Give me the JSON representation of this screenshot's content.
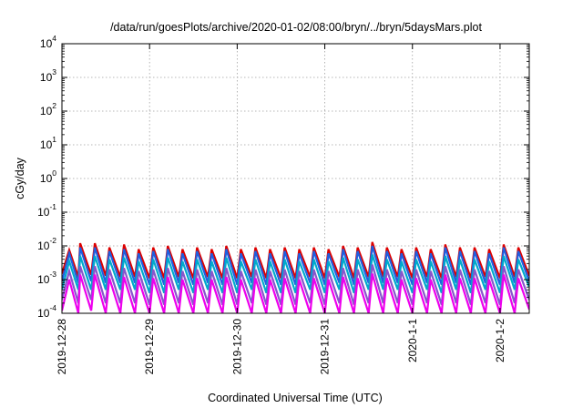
{
  "chart_data": {
    "type": "line",
    "title": "/data/run/goesPlots/archive/2020-01-02/08:00/bryn/../bryn/5daysMars.plot",
    "xlabel": "Coordinated Universal Time (UTC)",
    "ylabel": "cGy/day",
    "yscale": "log",
    "ylim": [
      0.0001,
      10000
    ],
    "xlim": [
      "2019-12-28T00:00",
      "2020-01-02T08:00"
    ],
    "grid": true,
    "legend": "none",
    "y_ticks": [
      {
        "base": "10",
        "exp": "-4",
        "value": 0.0001
      },
      {
        "base": "10",
        "exp": "-3",
        "value": 0.001
      },
      {
        "base": "10",
        "exp": "-2",
        "value": 0.01
      },
      {
        "base": "10",
        "exp": "-1",
        "value": 0.1
      },
      {
        "base": "10",
        "exp": "0",
        "value": 1
      },
      {
        "base": "10",
        "exp": "1",
        "value": 10
      },
      {
        "base": "10",
        "exp": "2",
        "value": 100
      },
      {
        "base": "10",
        "exp": "3",
        "value": 1000
      },
      {
        "base": "10",
        "exp": "4",
        "value": 10000
      }
    ],
    "x_ticks": [
      {
        "label": "2019-12-28",
        "value": "2019-12-28T00:00"
      },
      {
        "label": "2019-12-29",
        "value": "2019-12-29T00:00"
      },
      {
        "label": "2019-12-30",
        "value": "2019-12-30T00:00"
      },
      {
        "label": "2019-12-31",
        "value": "2019-12-31T00:00"
      },
      {
        "label": "2020-1-1",
        "value": "2020-01-01T00:00"
      },
      {
        "label": "2020-1-2",
        "value": "2020-01-02T00:00"
      }
    ],
    "series": [
      {
        "color": "#dd0000",
        "x": [
          "2019-12-28T00:00",
          "2019-12-28T02:00",
          "2019-12-28T04:30",
          "2019-12-28T05:00",
          "2019-12-28T08:00",
          "2019-12-28T09:00",
          "2019-12-28T12:00",
          "2019-12-28T13:00",
          "2019-12-28T16:00",
          "2019-12-28T17:00",
          "2019-12-28T20:00",
          "2019-12-28T21:00",
          "2019-12-29T00:00",
          "2019-12-29T01:00",
          "2019-12-29T04:00",
          "2019-12-29T05:00",
          "2019-12-29T08:00",
          "2019-12-29T09:00",
          "2019-12-29T12:00",
          "2019-12-29T13:00",
          "2019-12-29T16:00",
          "2019-12-29T17:00",
          "2019-12-29T20:00",
          "2019-12-29T21:00",
          "2019-12-30T00:00",
          "2019-12-30T01:00",
          "2019-12-30T04:00",
          "2019-12-30T05:00",
          "2019-12-30T08:00",
          "2019-12-30T09:00",
          "2019-12-30T12:00",
          "2019-12-30T13:00",
          "2019-12-30T16:00",
          "2019-12-30T17:00",
          "2019-12-30T20:00",
          "2019-12-30T21:00",
          "2019-12-31T00:00",
          "2019-12-31T01:00",
          "2019-12-31T04:00",
          "2019-12-31T05:00",
          "2019-12-31T08:00",
          "2019-12-31T09:00",
          "2019-12-31T12:00",
          "2019-12-31T13:00",
          "2019-12-31T16:00",
          "2019-12-31T17:00",
          "2019-12-31T20:00",
          "2019-12-31T21:00",
          "2020-01-01T00:00",
          "2020-01-01T01:00",
          "2020-01-01T04:00",
          "2020-01-01T05:00",
          "2020-01-01T08:00",
          "2020-01-01T09:00",
          "2020-01-01T12:00",
          "2020-01-01T13:00",
          "2020-01-01T16:00",
          "2020-01-01T17:00",
          "2020-01-01T20:00",
          "2020-01-01T21:00",
          "2020-01-02T00:00",
          "2020-01-02T01:00",
          "2020-01-02T04:00",
          "2020-01-02T05:00",
          "2020-01-02T08:00"
        ],
        "y": [
          0.0015,
          0.0075,
          0.0012,
          0.012,
          0.0014,
          0.012,
          0.0013,
          0.009,
          0.0012,
          0.011,
          0.0012,
          0.008,
          0.0011,
          0.009,
          0.0011,
          0.01,
          0.0012,
          0.008,
          0.0011,
          0.009,
          0.0012,
          0.008,
          0.0011,
          0.01,
          0.0011,
          0.008,
          0.0012,
          0.009,
          0.0011,
          0.008,
          0.0011,
          0.009,
          0.0011,
          0.008,
          0.0012,
          0.009,
          0.0011,
          0.008,
          0.0012,
          0.01,
          0.0011,
          0.009,
          0.0012,
          0.013,
          0.0012,
          0.009,
          0.0012,
          0.008,
          0.0011,
          0.009,
          0.0012,
          0.008,
          0.0011,
          0.011,
          0.0012,
          0.009,
          0.0011,
          0.009,
          0.0012,
          0.008,
          0.0011,
          0.011,
          0.0012,
          0.009,
          0.0013
        ]
      },
      {
        "color": "#1f5fe0",
        "x": [
          "2019-12-28T00:00",
          "2019-12-28T02:00",
          "2019-12-28T04:30",
          "2019-12-28T05:00",
          "2019-12-28T08:00",
          "2019-12-28T09:00",
          "2019-12-28T12:00",
          "2019-12-28T13:00",
          "2019-12-28T16:00",
          "2019-12-28T17:00",
          "2019-12-28T20:00",
          "2019-12-28T21:00",
          "2019-12-29T00:00",
          "2019-12-29T01:00",
          "2019-12-29T04:00",
          "2019-12-29T05:00",
          "2019-12-29T08:00",
          "2019-12-29T09:00",
          "2019-12-29T12:00",
          "2019-12-29T13:00",
          "2019-12-29T16:00",
          "2019-12-29T17:00",
          "2019-12-29T20:00",
          "2019-12-29T21:00",
          "2019-12-30T00:00",
          "2019-12-30T01:00",
          "2019-12-30T04:00",
          "2019-12-30T05:00",
          "2019-12-30T08:00",
          "2019-12-30T09:00",
          "2019-12-30T12:00",
          "2019-12-30T13:00",
          "2019-12-30T16:00",
          "2019-12-30T17:00",
          "2019-12-30T20:00",
          "2019-12-30T21:00",
          "2019-12-31T00:00",
          "2019-12-31T01:00",
          "2019-12-31T04:00",
          "2019-12-31T05:00",
          "2019-12-31T08:00",
          "2019-12-31T09:00",
          "2019-12-31T12:00",
          "2019-12-31T13:00",
          "2019-12-31T16:00",
          "2019-12-31T17:00",
          "2019-12-31T20:00",
          "2019-12-31T21:00",
          "2020-01-01T00:00",
          "2020-01-01T01:00",
          "2020-01-01T04:00",
          "2020-01-01T05:00",
          "2020-01-01T08:00",
          "2020-01-01T09:00",
          "2020-01-01T12:00",
          "2020-01-01T13:00",
          "2020-01-01T16:00",
          "2020-01-01T17:00",
          "2020-01-01T20:00",
          "2020-01-01T21:00",
          "2020-01-02T00:00",
          "2020-01-02T01:00",
          "2020-01-02T04:00",
          "2020-01-02T05:00",
          "2020-01-02T08:00"
        ],
        "y": [
          0.0009,
          0.006,
          0.0008,
          0.009,
          0.0009,
          0.009,
          0.0008,
          0.007,
          0.0008,
          0.008,
          0.0008,
          0.006,
          0.0007,
          0.007,
          0.0007,
          0.008,
          0.0008,
          0.006,
          0.0007,
          0.007,
          0.0008,
          0.006,
          0.0007,
          0.008,
          0.0007,
          0.006,
          0.0008,
          0.007,
          0.0007,
          0.006,
          0.0007,
          0.007,
          0.0007,
          0.006,
          0.0008,
          0.007,
          0.0007,
          0.006,
          0.0008,
          0.008,
          0.0007,
          0.007,
          0.0008,
          0.01,
          0.0008,
          0.007,
          0.0008,
          0.006,
          0.0007,
          0.007,
          0.0008,
          0.006,
          0.0007,
          0.009,
          0.0008,
          0.007,
          0.0007,
          0.007,
          0.0008,
          0.006,
          0.0007,
          0.009,
          0.0008,
          0.007,
          0.0009
        ]
      },
      {
        "color": "#00aacc",
        "x": [
          "2019-12-28T00:00",
          "2019-12-28T02:00",
          "2019-12-28T04:30",
          "2019-12-28T05:00",
          "2019-12-28T08:00",
          "2019-12-28T09:00",
          "2019-12-28T12:00",
          "2019-12-28T13:00",
          "2019-12-28T16:00",
          "2019-12-28T17:00",
          "2019-12-28T20:00",
          "2019-12-28T21:00",
          "2019-12-29T00:00",
          "2019-12-29T01:00",
          "2019-12-29T04:00",
          "2019-12-29T05:00",
          "2019-12-29T08:00",
          "2019-12-29T09:00",
          "2019-12-29T12:00",
          "2019-12-29T13:00",
          "2019-12-29T16:00",
          "2019-12-29T17:00",
          "2019-12-29T20:00",
          "2019-12-29T21:00",
          "2019-12-30T00:00",
          "2019-12-30T01:00",
          "2019-12-30T04:00",
          "2019-12-30T05:00",
          "2019-12-30T08:00",
          "2019-12-30T09:00",
          "2019-12-30T12:00",
          "2019-12-30T13:00",
          "2019-12-30T16:00",
          "2019-12-30T17:00",
          "2019-12-30T20:00",
          "2019-12-30T21:00",
          "2019-12-31T00:00",
          "2019-12-31T01:00",
          "2019-12-31T04:00",
          "2019-12-31T05:00",
          "2019-12-31T08:00",
          "2019-12-31T09:00",
          "2019-12-31T12:00",
          "2019-12-31T13:00",
          "2019-12-31T16:00",
          "2019-12-31T17:00",
          "2019-12-31T20:00",
          "2019-12-31T21:00",
          "2020-01-01T00:00",
          "2020-01-01T01:00",
          "2020-01-01T04:00",
          "2020-01-01T05:00",
          "2020-01-01T08:00",
          "2020-01-01T09:00",
          "2020-01-01T12:00",
          "2020-01-01T13:00",
          "2020-01-01T16:00",
          "2020-01-01T17:00",
          "2020-01-01T20:00",
          "2020-01-01T21:00",
          "2020-01-02T00:00",
          "2020-01-02T01:00",
          "2020-01-02T04:00",
          "2020-01-02T05:00",
          "2020-01-02T08:00"
        ],
        "y": [
          0.0005,
          0.0035,
          0.0005,
          0.005,
          0.0005,
          0.005,
          0.0005,
          0.004,
          0.0005,
          0.0045,
          0.0005,
          0.0035,
          0.0004,
          0.004,
          0.0004,
          0.0045,
          0.0005,
          0.0035,
          0.0004,
          0.004,
          0.0005,
          0.0035,
          0.0004,
          0.0045,
          0.0004,
          0.0035,
          0.0005,
          0.004,
          0.0004,
          0.0035,
          0.0004,
          0.004,
          0.0004,
          0.0035,
          0.0005,
          0.004,
          0.0004,
          0.0035,
          0.0005,
          0.0045,
          0.0004,
          0.004,
          0.0005,
          0.0055,
          0.0005,
          0.004,
          0.0005,
          0.0035,
          0.0004,
          0.004,
          0.0005,
          0.0035,
          0.0004,
          0.005,
          0.0005,
          0.004,
          0.0004,
          0.004,
          0.0005,
          0.0035,
          0.0004,
          0.005,
          0.0005,
          0.004,
          0.0006
        ]
      },
      {
        "color": "#8855cc",
        "x": [
          "2019-12-28T00:00",
          "2019-12-28T02:00",
          "2019-12-28T04:30",
          "2019-12-28T05:00",
          "2019-12-28T08:00",
          "2019-12-28T09:00",
          "2019-12-28T12:00",
          "2019-12-28T13:00",
          "2019-12-28T16:00",
          "2019-12-28T17:00",
          "2019-12-28T20:00",
          "2019-12-28T21:00",
          "2019-12-29T00:00",
          "2019-12-29T01:00",
          "2019-12-29T04:00",
          "2019-12-29T05:00",
          "2019-12-29T08:00",
          "2019-12-29T09:00",
          "2019-12-29T12:00",
          "2019-12-29T13:00",
          "2019-12-29T16:00",
          "2019-12-29T17:00",
          "2019-12-29T20:00",
          "2019-12-29T21:00",
          "2019-12-30T00:00",
          "2019-12-30T01:00",
          "2019-12-30T04:00",
          "2019-12-30T05:00",
          "2019-12-30T08:00",
          "2019-12-30T09:00",
          "2019-12-30T12:00",
          "2019-12-30T13:00",
          "2019-12-30T16:00",
          "2019-12-30T17:00",
          "2019-12-30T20:00",
          "2019-12-30T21:00",
          "2019-12-31T00:00",
          "2019-12-31T01:00",
          "2019-12-31T04:00",
          "2019-12-31T05:00",
          "2019-12-31T08:00",
          "2019-12-31T09:00",
          "2019-12-31T12:00",
          "2019-12-31T13:00",
          "2019-12-31T16:00",
          "2019-12-31T17:00",
          "2019-12-31T20:00",
          "2019-12-31T21:00",
          "2020-01-01T00:00",
          "2020-01-01T01:00",
          "2020-01-01T04:00",
          "2020-01-01T05:00",
          "2020-01-01T08:00",
          "2020-01-01T09:00",
          "2020-01-01T12:00",
          "2020-01-01T13:00",
          "2020-01-01T16:00",
          "2020-01-01T17:00",
          "2020-01-01T20:00",
          "2020-01-01T21:00",
          "2020-01-02T00:00",
          "2020-01-02T01:00",
          "2020-01-02T04:00",
          "2020-01-02T05:00",
          "2020-01-02T08:00"
        ],
        "y": [
          0.00025,
          0.0018,
          0.0002,
          0.0025,
          0.00025,
          0.0025,
          0.0002,
          0.002,
          0.0002,
          0.0022,
          0.0002,
          0.0018,
          0.00018,
          0.002,
          0.00018,
          0.0022,
          0.0002,
          0.0018,
          0.00018,
          0.002,
          0.0002,
          0.0018,
          0.00018,
          0.0022,
          0.00018,
          0.0018,
          0.0002,
          0.002,
          0.00018,
          0.0018,
          0.00018,
          0.002,
          0.00018,
          0.0018,
          0.0002,
          0.002,
          0.00018,
          0.0018,
          0.0002,
          0.0022,
          0.00018,
          0.002,
          0.0002,
          0.0028,
          0.0002,
          0.002,
          0.0002,
          0.0018,
          0.00018,
          0.002,
          0.0002,
          0.0018,
          0.00018,
          0.0025,
          0.0002,
          0.002,
          0.00018,
          0.002,
          0.0002,
          0.0018,
          0.00018,
          0.0025,
          0.0002,
          0.002,
          0.00025
        ]
      },
      {
        "color": "#ee00ee",
        "x": [
          "2019-12-28T00:00",
          "2019-12-28T02:00",
          "2019-12-28T04:30",
          "2019-12-28T05:00",
          "2019-12-28T08:00",
          "2019-12-28T09:00",
          "2019-12-28T12:00",
          "2019-12-28T13:00",
          "2019-12-28T16:00",
          "2019-12-28T17:00",
          "2019-12-28T20:00",
          "2019-12-28T21:00",
          "2019-12-29T00:00",
          "2019-12-29T01:00",
          "2019-12-29T04:00",
          "2019-12-29T05:00",
          "2019-12-29T08:00",
          "2019-12-29T09:00",
          "2019-12-29T12:00",
          "2019-12-29T13:00",
          "2019-12-29T16:00",
          "2019-12-29T17:00",
          "2019-12-29T20:00",
          "2019-12-29T21:00",
          "2019-12-30T00:00",
          "2019-12-30T01:00",
          "2019-12-30T04:00",
          "2019-12-30T05:00",
          "2019-12-30T08:00",
          "2019-12-30T09:00",
          "2019-12-30T12:00",
          "2019-12-30T13:00",
          "2019-12-30T16:00",
          "2019-12-30T17:00",
          "2019-12-30T20:00",
          "2019-12-30T21:00",
          "2019-12-31T00:00",
          "2019-12-31T01:00",
          "2019-12-31T04:00",
          "2019-12-31T05:00",
          "2019-12-31T08:00",
          "2019-12-31T09:00",
          "2019-12-31T12:00",
          "2019-12-31T13:00",
          "2019-12-31T16:00",
          "2019-12-31T17:00",
          "2019-12-31T20:00",
          "2019-12-31T21:00",
          "2020-01-01T00:00",
          "2020-01-01T01:00",
          "2020-01-01T04:00",
          "2020-01-01T05:00",
          "2020-01-01T08:00",
          "2020-01-01T09:00",
          "2020-01-01T12:00",
          "2020-01-01T13:00",
          "2020-01-01T16:00",
          "2020-01-01T17:00",
          "2020-01-01T20:00",
          "2020-01-01T21:00",
          "2020-01-02T00:00",
          "2020-01-02T01:00",
          "2020-01-02T04:00",
          "2020-01-02T05:00",
          "2020-01-02T08:00"
        ],
        "y": [
          0.00012,
          0.001,
          0.0001,
          0.0014,
          0.00012,
          0.0014,
          0.0001,
          0.0011,
          0.0001,
          0.0012,
          0.0001,
          0.001,
          0.0001,
          0.0011,
          0.0001,
          0.0012,
          0.0001,
          0.001,
          0.0001,
          0.0011,
          0.0001,
          0.001,
          0.0001,
          0.0012,
          0.0001,
          0.001,
          0.0001,
          0.0011,
          0.0001,
          0.001,
          0.0001,
          0.0011,
          0.0001,
          0.001,
          0.0001,
          0.0011,
          0.0001,
          0.001,
          0.0001,
          0.0012,
          0.0001,
          0.0011,
          0.0001,
          0.0015,
          0.0001,
          0.0011,
          0.0001,
          0.001,
          0.0001,
          0.0011,
          0.0001,
          0.001,
          0.0001,
          0.0014,
          0.0001,
          0.0011,
          0.0001,
          0.0011,
          0.0001,
          0.001,
          0.0001,
          0.0014,
          0.0001,
          0.0011,
          0.00013
        ]
      }
    ]
  }
}
